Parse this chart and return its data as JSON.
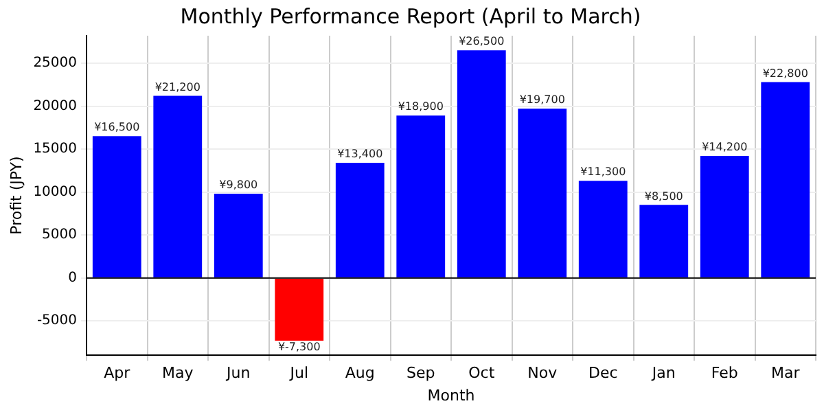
{
  "chart_data": {
    "type": "bar",
    "title": "Monthly Performance Report (April to March)",
    "xlabel": "Month",
    "ylabel": "Profit (JPY)",
    "categories": [
      "Apr",
      "May",
      "Jun",
      "Jul",
      "Aug",
      "Sep",
      "Oct",
      "Nov",
      "Dec",
      "Jan",
      "Feb",
      "Mar"
    ],
    "values": [
      16500,
      21200,
      9800,
      -7300,
      13400,
      18900,
      26500,
      19700,
      11300,
      8500,
      14200,
      22800
    ],
    "colors": [
      "#0000ff",
      "#0000ff",
      "#0000ff",
      "#ff0000",
      "#0000ff",
      "#0000ff",
      "#0000ff",
      "#0000ff",
      "#0000ff",
      "#0000ff",
      "#0000ff",
      "#0000ff"
    ],
    "value_labels": [
      "¥16,500",
      "¥21,200",
      "¥9,800",
      "¥-7,300",
      "¥13,400",
      "¥18,900",
      "¥26,500",
      "¥19,700",
      "¥11,300",
      "¥8,500",
      "¥14,200",
      "¥22,800"
    ],
    "ylim": [
      -9000,
      28200
    ],
    "yticks": [
      -5000,
      0,
      5000,
      10000,
      15000,
      20000,
      25000
    ],
    "ref_lines": [
      {
        "axis": "y",
        "value": 0,
        "color": "#000000"
      }
    ],
    "grid": true,
    "legend": false
  }
}
